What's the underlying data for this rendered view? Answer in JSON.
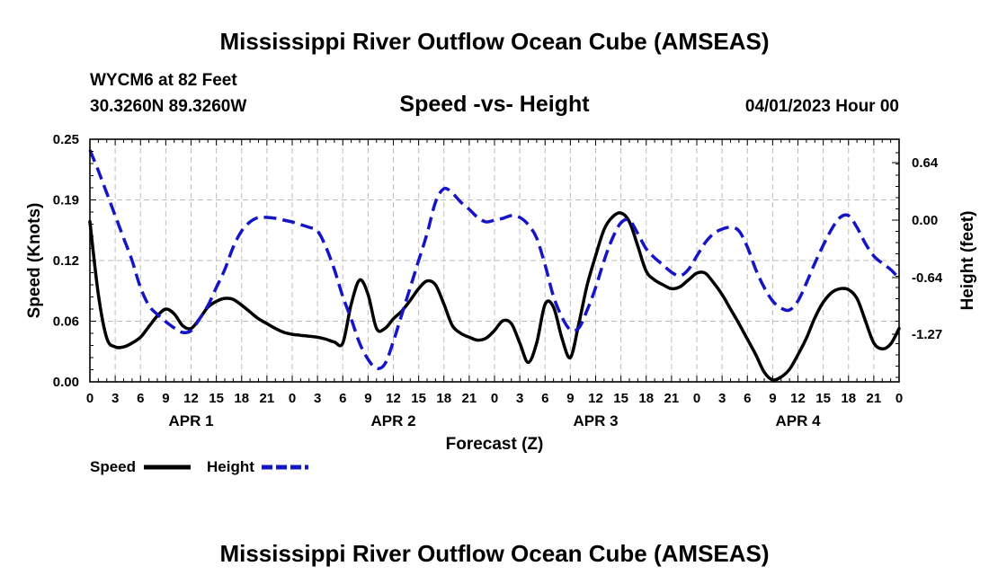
{
  "page_title": "Mississippi River Outflow Ocean Cube (AMSEAS)",
  "footer_title": "Mississippi River Outflow Ocean Cube (AMSEAS)",
  "station": {
    "name": "WYCM6 at 82 Feet",
    "coords": "30.3260N  89.3260W"
  },
  "chart_data": {
    "type": "line",
    "title": "Speed -vs- Height",
    "date_label": "04/01/2023 Hour 00",
    "xlabel": "Forecast (Z)",
    "ylabel_left": "Speed (Knots)",
    "ylabel_right": "Height (feet)",
    "x_unit": "hours from 04/01/2023 00Z",
    "xlim": [
      0,
      96
    ],
    "ylim_left": [
      0,
      0.25
    ],
    "ylim_right": [
      -1.8,
      0.9
    ],
    "left_ticks": [
      "0.00",
      "0.06",
      "0.12",
      "0.19",
      "0.25"
    ],
    "left_tick_values": [
      0.0,
      0.0625,
      0.125,
      0.1875,
      0.25
    ],
    "right_ticks": [
      "0.64",
      "0.00",
      "-0.64",
      "-1.27"
    ],
    "right_tick_values": [
      0.64,
      0.0,
      -0.64,
      -1.27
    ],
    "x_tick_labels": [
      "0",
      "3",
      "6",
      "9",
      "12",
      "15",
      "18",
      "21",
      "0",
      "3",
      "6",
      "9",
      "12",
      "15",
      "18",
      "21",
      "0",
      "3",
      "6",
      "9",
      "12",
      "15",
      "18",
      "21",
      "0",
      "3",
      "6",
      "9",
      "12",
      "15",
      "18",
      "21",
      "0"
    ],
    "day_labels": [
      {
        "label": "APR 1",
        "hour": 12
      },
      {
        "label": "APR 2",
        "hour": 36
      },
      {
        "label": "APR 3",
        "hour": 60
      },
      {
        "label": "APR 4",
        "hour": 84
      }
    ],
    "series": [
      {
        "name": "Speed",
        "axis": "left",
        "color": "#000000",
        "dash": "solid",
        "points": [
          [
            0,
            0.165
          ],
          [
            1,
            0.09
          ],
          [
            2,
            0.045
          ],
          [
            3,
            0.036
          ],
          [
            4,
            0.036
          ],
          [
            5,
            0.04
          ],
          [
            6,
            0.046
          ],
          [
            7,
            0.057
          ],
          [
            8,
            0.068
          ],
          [
            9,
            0.075
          ],
          [
            10,
            0.07
          ],
          [
            11,
            0.058
          ],
          [
            12,
            0.055
          ],
          [
            13,
            0.065
          ],
          [
            14,
            0.077
          ],
          [
            15,
            0.083
          ],
          [
            16,
            0.086
          ],
          [
            17,
            0.085
          ],
          [
            18,
            0.079
          ],
          [
            19,
            0.072
          ],
          [
            20,
            0.065
          ],
          [
            21,
            0.06
          ],
          [
            22,
            0.055
          ],
          [
            23,
            0.051
          ],
          [
            24,
            0.049
          ],
          [
            25,
            0.048
          ],
          [
            26,
            0.047
          ],
          [
            27,
            0.046
          ],
          [
            28,
            0.044
          ],
          [
            29,
            0.041
          ],
          [
            30,
            0.04
          ],
          [
            31,
            0.08
          ],
          [
            32,
            0.105
          ],
          [
            33,
            0.09
          ],
          [
            34,
            0.055
          ],
          [
            35,
            0.055
          ],
          [
            36,
            0.065
          ],
          [
            37,
            0.073
          ],
          [
            38,
            0.084
          ],
          [
            39,
            0.096
          ],
          [
            40,
            0.104
          ],
          [
            41,
            0.1
          ],
          [
            42,
            0.08
          ],
          [
            43,
            0.058
          ],
          [
            44,
            0.05
          ],
          [
            45,
            0.046
          ],
          [
            46,
            0.043
          ],
          [
            47,
            0.045
          ],
          [
            48,
            0.053
          ],
          [
            49,
            0.063
          ],
          [
            50,
            0.06
          ],
          [
            51,
            0.04
          ],
          [
            52,
            0.02
          ],
          [
            53,
            0.04
          ],
          [
            54,
            0.08
          ],
          [
            55,
            0.077
          ],
          [
            56,
            0.045
          ],
          [
            57,
            0.025
          ],
          [
            58,
            0.06
          ],
          [
            59,
            0.1
          ],
          [
            60,
            0.13
          ],
          [
            61,
            0.157
          ],
          [
            62,
            0.17
          ],
          [
            63,
            0.174
          ],
          [
            64,
            0.165
          ],
          [
            65,
            0.14
          ],
          [
            66,
            0.114
          ],
          [
            67,
            0.105
          ],
          [
            68,
            0.1
          ],
          [
            69,
            0.096
          ],
          [
            70,
            0.098
          ],
          [
            71,
            0.105
          ],
          [
            72,
            0.112
          ],
          [
            73,
            0.112
          ],
          [
            74,
            0.102
          ],
          [
            75,
            0.09
          ],
          [
            76,
            0.075
          ],
          [
            77,
            0.06
          ],
          [
            78,
            0.044
          ],
          [
            79,
            0.028
          ],
          [
            80,
            0.01
          ],
          [
            81,
            0.002
          ],
          [
            82,
            0.005
          ],
          [
            83,
            0.013
          ],
          [
            84,
            0.028
          ],
          [
            85,
            0.045
          ],
          [
            86,
            0.066
          ],
          [
            87,
            0.082
          ],
          [
            88,
            0.092
          ],
          [
            89,
            0.096
          ],
          [
            90,
            0.095
          ],
          [
            91,
            0.086
          ],
          [
            92,
            0.063
          ],
          [
            93,
            0.04
          ],
          [
            94,
            0.034
          ],
          [
            95,
            0.039
          ],
          [
            96,
            0.055
          ]
        ]
      },
      {
        "name": "Height",
        "axis": "right",
        "color": "#1515c8",
        "dash": "dashed",
        "points": [
          [
            0,
            0.78
          ],
          [
            1,
            0.55
          ],
          [
            2,
            0.3
          ],
          [
            3,
            0.05
          ],
          [
            4,
            -0.2
          ],
          [
            5,
            -0.45
          ],
          [
            6,
            -0.75
          ],
          [
            7,
            -0.95
          ],
          [
            8,
            -1.05
          ],
          [
            9,
            -1.13
          ],
          [
            10,
            -1.2
          ],
          [
            11,
            -1.25
          ],
          [
            12,
            -1.23
          ],
          [
            13,
            -1.1
          ],
          [
            14,
            -0.95
          ],
          [
            15,
            -0.75
          ],
          [
            16,
            -0.55
          ],
          [
            17,
            -0.3
          ],
          [
            18,
            -0.12
          ],
          [
            19,
            -0.02
          ],
          [
            20,
            0.03
          ],
          [
            21,
            0.03
          ],
          [
            22,
            0.02
          ],
          [
            23,
            0.0
          ],
          [
            24,
            -0.02
          ],
          [
            25,
            -0.05
          ],
          [
            26,
            -0.08
          ],
          [
            27,
            -0.12
          ],
          [
            28,
            -0.3
          ],
          [
            29,
            -0.55
          ],
          [
            30,
            -0.85
          ],
          [
            31,
            -1.1
          ],
          [
            32,
            -1.37
          ],
          [
            33,
            -1.55
          ],
          [
            34,
            -1.65
          ],
          [
            35,
            -1.6
          ],
          [
            36,
            -1.35
          ],
          [
            37,
            -1.05
          ],
          [
            38,
            -0.75
          ],
          [
            39,
            -0.45
          ],
          [
            40,
            -0.15
          ],
          [
            41,
            0.2
          ],
          [
            42,
            0.35
          ],
          [
            43,
            0.3
          ],
          [
            44,
            0.2
          ],
          [
            45,
            0.12
          ],
          [
            46,
            0.03
          ],
          [
            47,
            -0.02
          ],
          [
            48,
            0.0
          ],
          [
            49,
            0.02
          ],
          [
            50,
            0.05
          ],
          [
            51,
            0.03
          ],
          [
            52,
            -0.05
          ],
          [
            53,
            -0.2
          ],
          [
            54,
            -0.5
          ],
          [
            55,
            -0.85
          ],
          [
            56,
            -1.08
          ],
          [
            57,
            -1.22
          ],
          [
            58,
            -1.2
          ],
          [
            59,
            -1.0
          ],
          [
            60,
            -0.75
          ],
          [
            61,
            -0.45
          ],
          [
            62,
            -0.2
          ],
          [
            63,
            -0.03
          ],
          [
            64,
            0.0
          ],
          [
            65,
            -0.15
          ],
          [
            66,
            -0.32
          ],
          [
            67,
            -0.42
          ],
          [
            68,
            -0.5
          ],
          [
            69,
            -0.58
          ],
          [
            70,
            -0.62
          ],
          [
            71,
            -0.55
          ],
          [
            72,
            -0.4
          ],
          [
            73,
            -0.25
          ],
          [
            74,
            -0.15
          ],
          [
            75,
            -0.1
          ],
          [
            76,
            -0.08
          ],
          [
            77,
            -0.12
          ],
          [
            78,
            -0.3
          ],
          [
            79,
            -0.55
          ],
          [
            80,
            -0.75
          ],
          [
            81,
            -0.9
          ],
          [
            82,
            -0.98
          ],
          [
            83,
            -1.0
          ],
          [
            84,
            -0.9
          ],
          [
            85,
            -0.7
          ],
          [
            86,
            -0.48
          ],
          [
            87,
            -0.28
          ],
          [
            88,
            -0.1
          ],
          [
            89,
            0.03
          ],
          [
            90,
            0.05
          ],
          [
            91,
            -0.08
          ],
          [
            92,
            -0.26
          ],
          [
            93,
            -0.4
          ],
          [
            94,
            -0.48
          ],
          [
            95,
            -0.55
          ],
          [
            96,
            -0.65
          ]
        ]
      }
    ],
    "legend": {
      "speed_label": "Speed",
      "height_label": "Height",
      "placement": "bottom-left"
    }
  }
}
